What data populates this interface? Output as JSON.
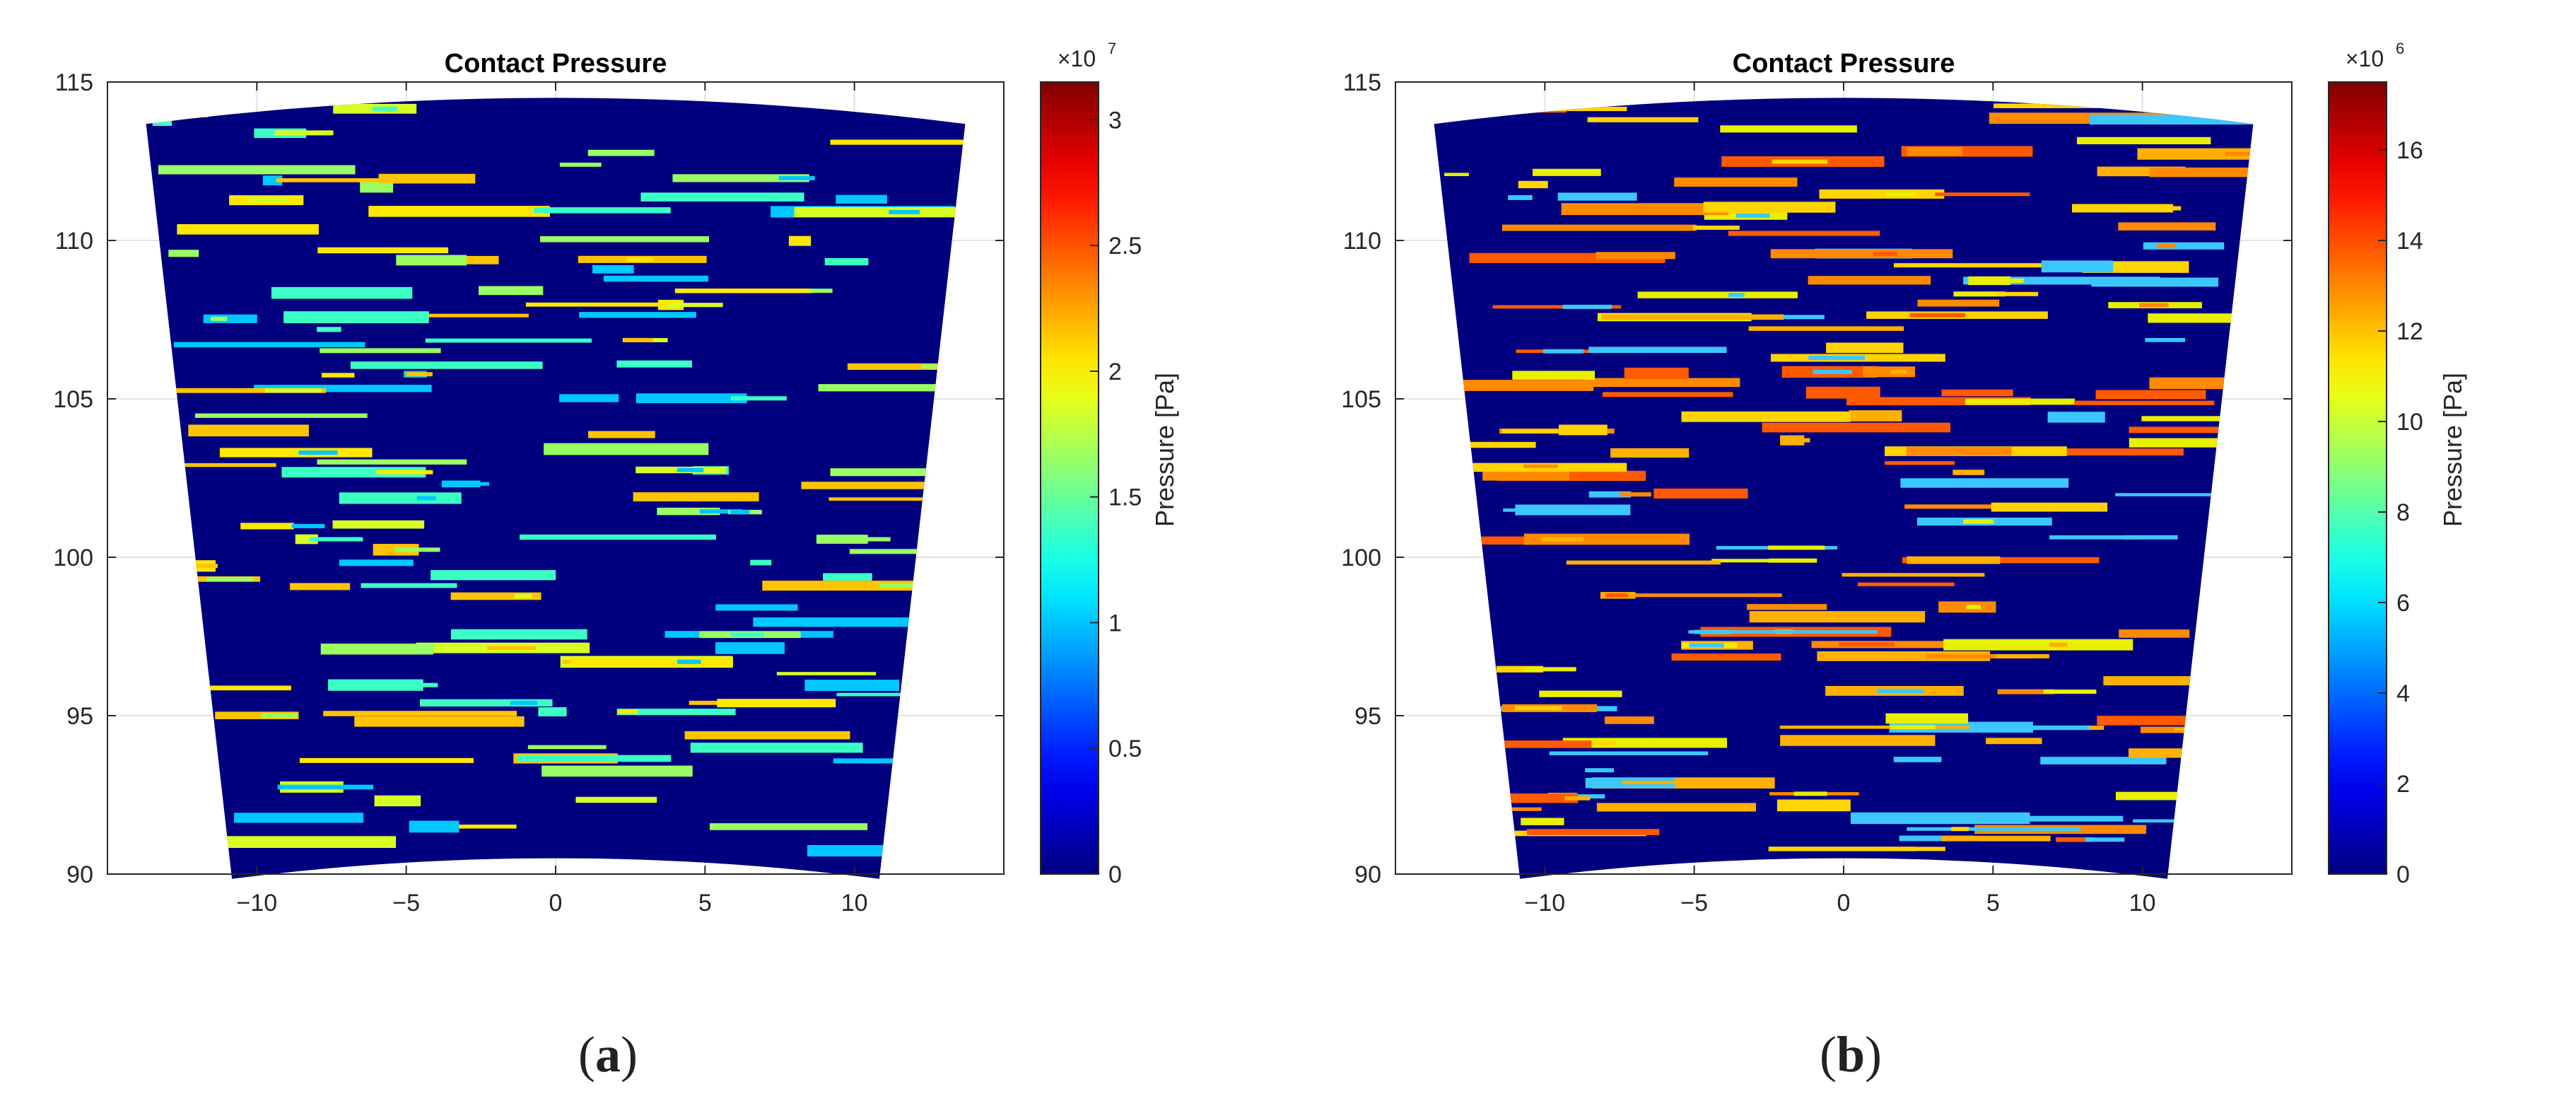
{
  "panels": [
    {
      "caption_letter": "a"
    },
    {
      "caption_letter": "b"
    }
  ],
  "chart_data": [
    {
      "type": "heatmap",
      "title": "Contact Pressure",
      "xlabel": "",
      "ylabel": "",
      "xlim": [
        -15,
        15
      ],
      "ylim": [
        90,
        115
      ],
      "x_ticks": [
        -10,
        -5,
        0,
        5,
        10
      ],
      "y_ticks": [
        90,
        95,
        100,
        105,
        110,
        115
      ],
      "grid": true,
      "colormap": "jet",
      "background_color": "#00007F",
      "domain_shape": "annular sector",
      "radial_range": [
        90.5,
        114.5
      ],
      "colorbar": {
        "label": "Pressure [Pa]",
        "range": [
          0,
          31500000
        ],
        "ticks": [
          0,
          0.5,
          1,
          1.5,
          2,
          2.5,
          3
        ],
        "multiplier_label": "×10",
        "exponent": "7",
        "scale": 10000000
      },
      "stripe_colors": [
        "#00C8FF",
        "#3CFFC4",
        "#9AFF62",
        "#D8FF24",
        "#FFE800",
        "#FFC400"
      ],
      "seed": 7
    },
    {
      "type": "heatmap",
      "title": "Contact Pressure",
      "xlabel": "",
      "ylabel": "",
      "xlim": [
        -15,
        15
      ],
      "ylim": [
        90,
        115
      ],
      "x_ticks": [
        -10,
        -5,
        0,
        5,
        10
      ],
      "y_ticks": [
        90,
        95,
        100,
        105,
        110,
        115
      ],
      "grid": true,
      "colormap": "jet",
      "background_color": "#00007F",
      "domain_shape": "annular sector",
      "radial_range": [
        90.5,
        114.5
      ],
      "colorbar": {
        "label": "Pressure [Pa]",
        "range": [
          0,
          17500000
        ],
        "ticks": [
          0,
          2,
          4,
          6,
          8,
          10,
          12,
          14,
          16
        ],
        "multiplier_label": "×10",
        "exponent": "6",
        "scale": 1000000
      },
      "stripe_colors": [
        "#FFD400",
        "#FFB000",
        "#FF8A00",
        "#FF5A00",
        "#E8F000",
        "#3CC8FF"
      ],
      "seed": 13
    }
  ]
}
